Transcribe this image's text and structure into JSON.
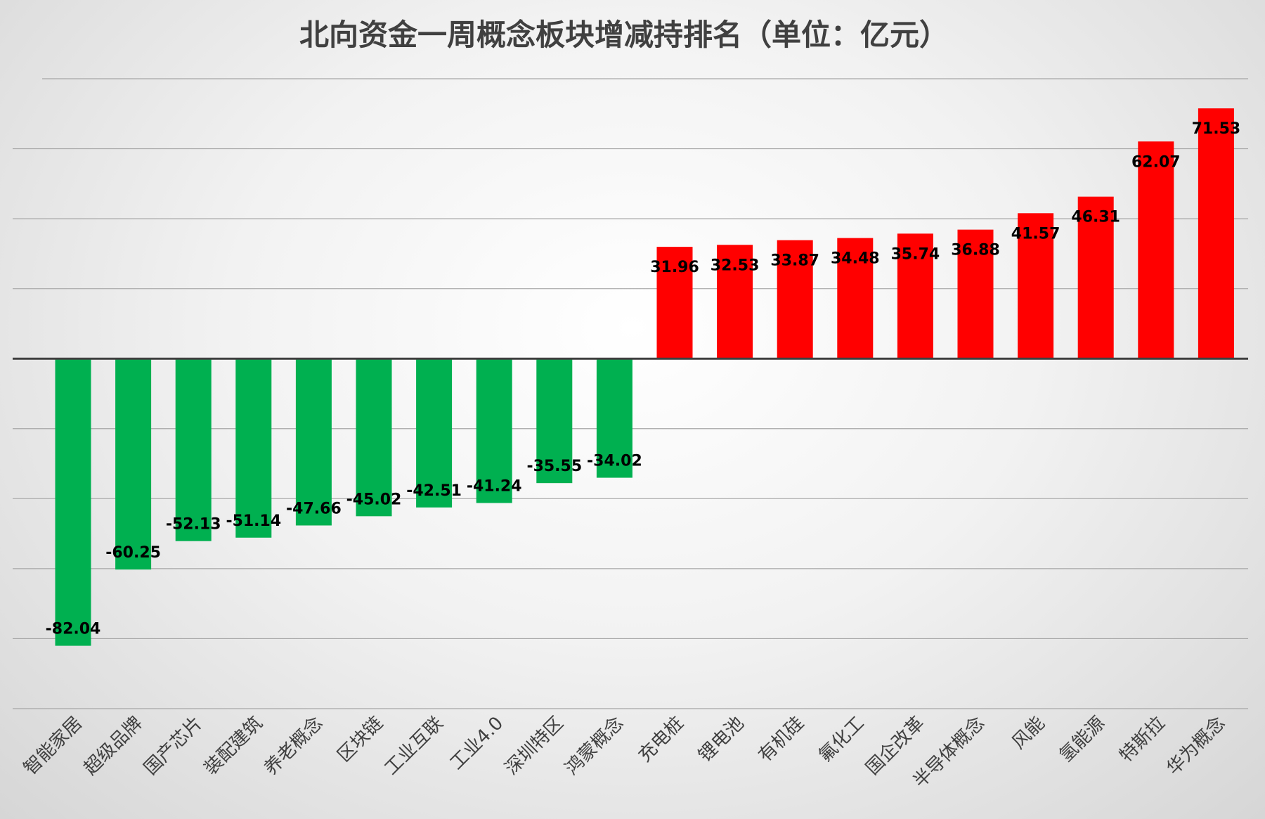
{
  "chart_data": {
    "type": "bar",
    "title": "北向资金一周概念板块增减持排名（单位：亿元）",
    "categories": [
      "智能家居",
      "超级品牌",
      "国产芯片",
      "装配建筑",
      "养老概念",
      "区块链",
      "工业互联",
      "工业4.0",
      "深圳特区",
      "鸿蒙概念",
      "充电桩",
      "锂电池",
      "有机硅",
      "氟化工",
      "国企改革",
      "半导体概念",
      "风能",
      "氢能源",
      "特斯拉",
      "华为概念"
    ],
    "values": [
      -82.04,
      -60.25,
      -52.13,
      -51.14,
      -47.66,
      -45.02,
      -42.51,
      -41.24,
      -35.55,
      -34.02,
      31.96,
      32.53,
      33.87,
      34.48,
      35.74,
      36.88,
      41.57,
      46.31,
      62.07,
      71.53
    ],
    "data_labels": [
      "-82.04",
      "-60.25",
      "-52.13",
      "-51.14",
      "-47.66",
      "-45.02",
      "-42.51",
      "-41.24",
      "-35.55",
      "-34.02",
      "31.96",
      "32.53",
      "33.87",
      "34.48",
      "35.74",
      "36.88",
      "41.57",
      "46.31",
      "62.07",
      "71.53"
    ],
    "ylim": [
      -100,
      80
    ],
    "grid": true,
    "legend": "none",
    "colors": {
      "positive": "#ff0000",
      "negative": "#00b050"
    },
    "xlabel": "",
    "ylabel": ""
  }
}
